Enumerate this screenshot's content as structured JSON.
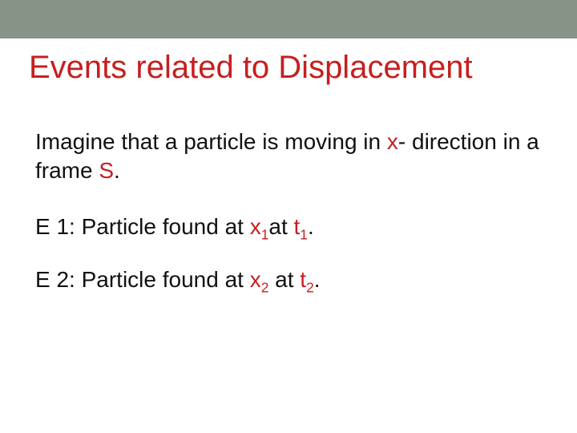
{
  "colors": {
    "topBand": "#879386",
    "titleColor": "#c51f1f",
    "bodyText": "#111111",
    "accentRed": "#c51f1f",
    "background": "#ffffff"
  },
  "typography": {
    "titleFontFamily": "Arial, Helvetica, sans-serif",
    "titleFontSize": 40,
    "bodyFontFamily": "Verdana, Geneva, sans-serif",
    "bodyFontSize": 28
  },
  "title": "Events related to Displacement",
  "intro": {
    "pre1": "Imagine that a particle is moving in ",
    "x": "x",
    "mid1": "- direction in a frame ",
    "S": "S",
    "post1": "."
  },
  "e1": {
    "label": "E 1: Particle found at ",
    "x": "x",
    "xsub": "1",
    "mid": "at ",
    "t": "t",
    "tsub": "1",
    "end": "."
  },
  "e2": {
    "label": "E 2: Particle found at ",
    "x": "x",
    "xsub": "2",
    "mid": " at ",
    "t": "t",
    "tsub": "2",
    "end": "."
  }
}
